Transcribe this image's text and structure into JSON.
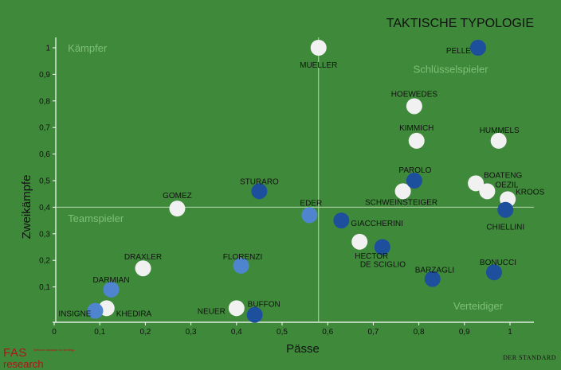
{
  "chart_data": {
    "type": "scatter",
    "title": "TAKTISCHE TYPOLOGIE",
    "xlabel": "Pässe",
    "ylabel": "Zweikämpfe",
    "xlim": [
      0,
      1.05
    ],
    "ylim": [
      0,
      1.06
    ],
    "x_ticks": [
      0,
      0.1,
      0.2,
      0.3,
      0.4,
      0.5,
      0.6,
      0.7,
      0.8,
      0.9,
      1
    ],
    "x_tick_labels": [
      "0",
      "0,1",
      "0,2",
      "0,3",
      "0,4",
      "0,5",
      "0,6",
      "0,7",
      "0,8",
      "0,9",
      "1"
    ],
    "y_ticks": [
      0.1,
      0.2,
      0.3,
      0.4,
      0.5,
      0.6,
      0.7,
      0.8,
      0.9,
      1
    ],
    "y_tick_labels": [
      "0,1",
      "0,2",
      "0,3",
      "0,4",
      "0,5",
      "0,6",
      "0,7",
      "0,8",
      "0,9",
      "1"
    ],
    "reference_lines": {
      "x": 0.58,
      "y": 0.4
    },
    "quadrant_labels": [
      {
        "text": "Kämpfer",
        "x": 0.03,
        "y": 1.0
      },
      {
        "text": "Schlüsselspieler",
        "x": 0.87,
        "y": 0.92
      },
      {
        "text": "Teamspieler",
        "x": 0.03,
        "y": 0.36
      },
      {
        "text": "Verteidiger",
        "x": 0.93,
        "y": 0.03
      }
    ],
    "series": [
      {
        "color": "#f1f1f1",
        "points": [
          {
            "label": "MUELLER",
            "x": 0.58,
            "y": 1.0
          },
          {
            "label": "HOEWEDES",
            "x": 0.79,
            "y": 0.78
          },
          {
            "label": "KIMMICH",
            "x": 0.795,
            "y": 0.65
          },
          {
            "label": "HUMMELS",
            "x": 0.975,
            "y": 0.65
          },
          {
            "label": "BOATENG",
            "x": 0.925,
            "y": 0.49
          },
          {
            "label": "OEZIL",
            "x": 0.95,
            "y": 0.46
          },
          {
            "label": "KROOS",
            "x": 0.995,
            "y": 0.43
          },
          {
            "label": "SCHWEINSTEIGER",
            "x": 0.765,
            "y": 0.46
          },
          {
            "label": "GOMEZ",
            "x": 0.27,
            "y": 0.395
          },
          {
            "label": "HECTOR",
            "x": 0.67,
            "y": 0.27
          },
          {
            "label": "DRAXLER",
            "x": 0.195,
            "y": 0.17
          },
          {
            "label": "NEUER",
            "x": 0.4,
            "y": 0.02
          },
          {
            "label": "KHEDIRA",
            "x": 0.115,
            "y": 0.02
          }
        ]
      },
      {
        "color": "#1c4f9c",
        "points": [
          {
            "label": "PELLE",
            "x": 0.93,
            "y": 1.0
          },
          {
            "label": "PAROLO",
            "x": 0.79,
            "y": 0.5
          },
          {
            "label": "STURARO",
            "x": 0.45,
            "y": 0.46
          },
          {
            "label": "GIACCHERINI",
            "x": 0.63,
            "y": 0.35
          },
          {
            "label": "CHIELLINI",
            "x": 0.99,
            "y": 0.39
          },
          {
            "label": "DE SCIGLIO",
            "x": 0.72,
            "y": 0.25
          },
          {
            "label": "BARZAGLI",
            "x": 0.83,
            "y": 0.13
          },
          {
            "label": "BONUCCI",
            "x": 0.965,
            "y": 0.155
          },
          {
            "label": "BUFFON",
            "x": 0.44,
            "y": -0.005
          }
        ]
      },
      {
        "color": "#4f85cf",
        "points": [
          {
            "label": "EDER",
            "x": 0.56,
            "y": 0.37
          },
          {
            "label": "FLORENZI",
            "x": 0.41,
            "y": 0.18
          },
          {
            "label": "DARMIAN",
            "x": 0.125,
            "y": 0.09
          },
          {
            "label": "INSIGNE",
            "x": 0.09,
            "y": 0.01
          }
        ]
      }
    ]
  },
  "logo": {
    "fas": "FAS",
    "research": "research",
    "tagline": "Network analysis for strategy"
  },
  "credit": "DER STANDARD"
}
